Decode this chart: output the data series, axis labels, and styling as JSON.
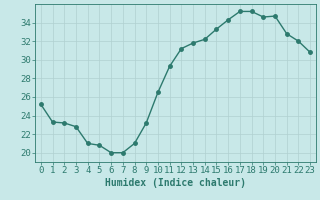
{
  "x": [
    0,
    1,
    2,
    3,
    4,
    5,
    6,
    7,
    8,
    9,
    10,
    11,
    12,
    13,
    14,
    15,
    16,
    17,
    18,
    19,
    20,
    21,
    22,
    23
  ],
  "y": [
    25.2,
    23.3,
    23.2,
    22.8,
    21.0,
    20.8,
    20.0,
    20.0,
    21.0,
    23.2,
    26.5,
    29.3,
    31.2,
    31.8,
    32.2,
    33.3,
    34.3,
    35.2,
    35.2,
    34.6,
    34.7,
    32.8,
    32.0,
    30.8
  ],
  "line_color": "#2d7a6e",
  "marker_color": "#2d7a6e",
  "bg_color": "#c8e8e8",
  "grid_color": "#b0d0d0",
  "axis_color": "#2d7a6e",
  "xlabel": "Humidex (Indice chaleur)",
  "ylim": [
    19,
    36
  ],
  "yticks": [
    20,
    22,
    24,
    26,
    28,
    30,
    32,
    34
  ],
  "xlim": [
    -0.5,
    23.5
  ],
  "xticks": [
    0,
    1,
    2,
    3,
    4,
    5,
    6,
    7,
    8,
    9,
    10,
    11,
    12,
    13,
    14,
    15,
    16,
    17,
    18,
    19,
    20,
    21,
    22,
    23
  ],
  "xtick_labels": [
    "0",
    "1",
    "2",
    "3",
    "4",
    "5",
    "6",
    "7",
    "8",
    "9",
    "10",
    "11",
    "12",
    "13",
    "14",
    "15",
    "16",
    "17",
    "18",
    "19",
    "20",
    "21",
    "22",
    "23"
  ],
  "label_fontsize": 7,
  "tick_fontsize": 6.5
}
